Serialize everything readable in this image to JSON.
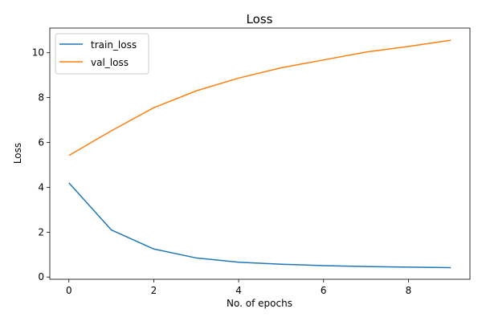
{
  "chart_data": {
    "type": "line",
    "title": "Loss",
    "xlabel": "No. of epochs",
    "ylabel": "Loss",
    "x": [
      0,
      1,
      2,
      3,
      4,
      5,
      6,
      7,
      8,
      9
    ],
    "xlim": [
      -0.45,
      9.45
    ],
    "ylim": [
      -0.1,
      11.1
    ],
    "xticks": [
      0,
      2,
      4,
      6,
      8
    ],
    "yticks": [
      0,
      2,
      4,
      6,
      8,
      10
    ],
    "grid": false,
    "legend_position": "top-left",
    "series": [
      {
        "name": "train_loss",
        "color": "#1f77b4",
        "values": [
          4.2,
          2.1,
          1.25,
          0.85,
          0.66,
          0.57,
          0.51,
          0.47,
          0.44,
          0.42
        ]
      },
      {
        "name": "val_loss",
        "color": "#ff7f0e",
        "values": [
          5.42,
          6.52,
          7.55,
          8.3,
          8.87,
          9.33,
          9.68,
          10.03,
          10.28,
          10.56
        ]
      }
    ]
  }
}
